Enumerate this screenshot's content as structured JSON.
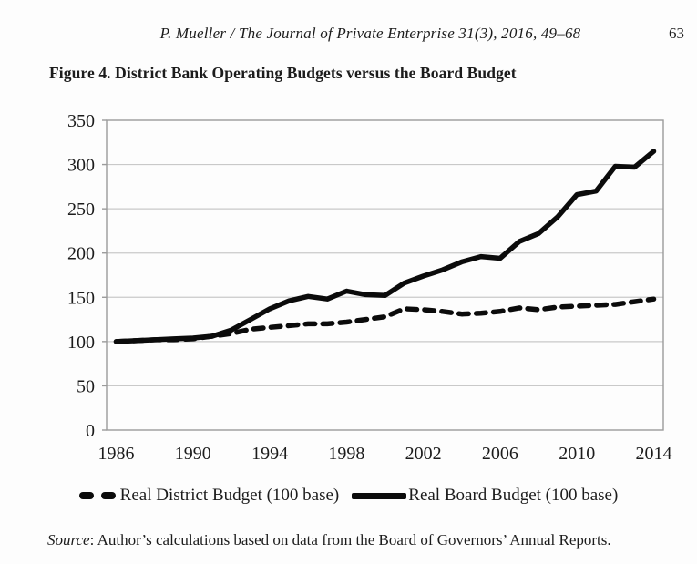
{
  "header": {
    "running_head": "P. Mueller / The Journal of Private Enterprise 31(3), 2016, 49–68",
    "page_number": "63"
  },
  "figure": {
    "title": "Figure 4. District Bank Operating Budgets versus the Board Budget"
  },
  "chart_data": {
    "type": "line",
    "title": "Figure 4. District Bank Operating Budgets versus the Board Budget",
    "x": [
      1986,
      1987,
      1988,
      1989,
      1990,
      1991,
      1992,
      1993,
      1994,
      1995,
      1996,
      1997,
      1998,
      1999,
      2000,
      2001,
      2002,
      2003,
      2004,
      2005,
      2006,
      2007,
      2008,
      2009,
      2010,
      2011,
      2012,
      2013,
      2014
    ],
    "series": [
      {
        "name": "Real District Budget (100 base)",
        "style": "dashed",
        "values": [
          100,
          101,
          102,
          102,
          103,
          106,
          109,
          114,
          116,
          118,
          120,
          120,
          122,
          125,
          128,
          137,
          136,
          134,
          131,
          132,
          134,
          138,
          136,
          139,
          140,
          141,
          142,
          145,
          148
        ]
      },
      {
        "name": "Real Board Budget (100 base)",
        "style": "solid",
        "values": [
          100,
          101,
          102,
          103,
          104,
          106,
          113,
          125,
          137,
          146,
          151,
          148,
          157,
          153,
          152,
          166,
          174,
          181,
          190,
          196,
          194,
          213,
          222,
          241,
          266,
          270,
          298,
          297,
          315
        ]
      }
    ],
    "xlabel": "",
    "ylabel": "",
    "ylim": [
      0,
      350
    ],
    "y_ticks": [
      0,
      50,
      100,
      150,
      200,
      250,
      300,
      350
    ],
    "x_tick_labels": [
      1986,
      1990,
      1994,
      1998,
      2002,
      2006,
      2010,
      2014
    ],
    "grid": "horizontal",
    "line_color": "#0b0b0b",
    "grid_color": "#c9c9c9",
    "axis_color": "#9b9b9b",
    "legend_position": "bottom"
  },
  "legend": {
    "items": [
      {
        "label": "Real District Budget (100 base)",
        "marker": "dashed"
      },
      {
        "label": "Real Board Budget (100 base)",
        "marker": "solid"
      }
    ]
  },
  "source": {
    "label": "Source",
    "text": ": Author’s calculations based on data from the Board of Governors’ Annual Reports."
  }
}
